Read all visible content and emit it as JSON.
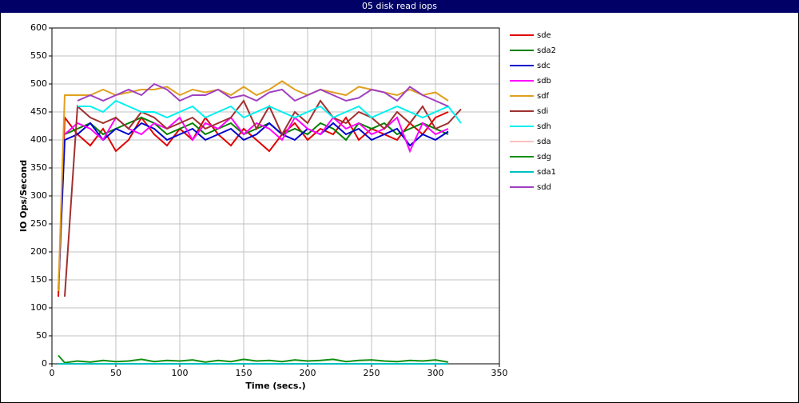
{
  "chart_data": {
    "type": "line",
    "title": "05 disk read iops",
    "xlabel": "Time (secs.)",
    "ylabel": "IO Ops/Second",
    "xlim": [
      0,
      350
    ],
    "xticks": [
      0,
      50,
      100,
      150,
      200,
      250,
      300,
      350
    ],
    "ylim": [
      0,
      600
    ],
    "yticks": [
      0,
      50,
      100,
      150,
      200,
      250,
      300,
      350,
      400,
      450,
      500,
      550,
      600
    ],
    "grid": true,
    "legend": "right",
    "x": [
      5,
      10,
      20,
      30,
      40,
      50,
      60,
      70,
      80,
      90,
      100,
      110,
      120,
      130,
      140,
      150,
      160,
      170,
      180,
      190,
      200,
      210,
      220,
      230,
      240,
      250,
      260,
      270,
      280,
      290,
      300,
      310,
      320
    ],
    "series": [
      {
        "name": "sde",
        "color": "#e00000",
        "values": [
          120,
          440,
          410,
          390,
          420,
          380,
          400,
          440,
          410,
          390,
          420,
          400,
          440,
          410,
          390,
          420,
          400,
          380,
          410,
          430,
          400,
          420,
          410,
          440,
          400,
          420,
          410,
          400,
          430,
          410,
          440,
          450,
          null
        ]
      },
      {
        "name": "sda2",
        "color": "#008000",
        "values": [
          null,
          410,
          420,
          430,
          410,
          420,
          430,
          440,
          430,
          410,
          420,
          430,
          410,
          420,
          430,
          410,
          420,
          430,
          410,
          420,
          410,
          430,
          420,
          400,
          430,
          420,
          430,
          410,
          420,
          430,
          420,
          410,
          null
        ]
      },
      {
        "name": "sdc",
        "color": "#0000cc",
        "values": [
          130,
          400,
          410,
          430,
          400,
          420,
          410,
          430,
          420,
          400,
          410,
          420,
          400,
          410,
          420,
          400,
          410,
          430,
          410,
          400,
          420,
          410,
          430,
          410,
          420,
          400,
          410,
          420,
          390,
          410,
          400,
          415,
          null
        ]
      },
      {
        "name": "sdb",
        "color": "#ff00ff",
        "values": [
          null,
          410,
          430,
          420,
          400,
          440,
          420,
          410,
          430,
          420,
          440,
          400,
          430,
          420,
          440,
          410,
          430,
          420,
          400,
          440,
          420,
          410,
          440,
          420,
          430,
          410,
          420,
          440,
          380,
          430,
          410,
          420,
          null
        ]
      },
      {
        "name": "sdf",
        "color": "#e0a020",
        "values": [
          130,
          480,
          480,
          480,
          490,
          480,
          485,
          490,
          490,
          495,
          480,
          490,
          485,
          490,
          480,
          495,
          480,
          490,
          505,
          490,
          480,
          490,
          485,
          480,
          495,
          490,
          485,
          480,
          490,
          480,
          485,
          470,
          null
        ]
      },
      {
        "name": "sdi",
        "color": "#a03030",
        "values": [
          null,
          120,
          460,
          440,
          430,
          440,
          420,
          450,
          440,
          420,
          430,
          440,
          420,
          430,
          440,
          470,
          420,
          460,
          410,
          450,
          430,
          470,
          440,
          430,
          450,
          440,
          420,
          450,
          430,
          460,
          420,
          430,
          455
        ]
      },
      {
        "name": "sdh",
        "color": "#00f0f0",
        "values": [
          null,
          null,
          460,
          460,
          450,
          470,
          460,
          450,
          450,
          440,
          450,
          460,
          440,
          450,
          460,
          440,
          450,
          460,
          450,
          440,
          450,
          460,
          440,
          450,
          460,
          440,
          450,
          460,
          450,
          440,
          450,
          460,
          430
        ]
      },
      {
        "name": "sda",
        "color": "#ffc0c0",
        "values": [
          0,
          0,
          0,
          0,
          0,
          0,
          0,
          0,
          0,
          0,
          0,
          0,
          0,
          0,
          0,
          0,
          0,
          0,
          0,
          0,
          0,
          0,
          0,
          0,
          0,
          0,
          0,
          0,
          0,
          0,
          0,
          0,
          null
        ]
      },
      {
        "name": "sdg",
        "color": "#109010",
        "values": [
          15,
          2,
          5,
          3,
          6,
          4,
          5,
          8,
          4,
          6,
          5,
          7,
          3,
          6,
          4,
          8,
          5,
          6,
          4,
          7,
          5,
          6,
          8,
          4,
          6,
          7,
          5,
          4,
          6,
          5,
          7,
          3,
          null
        ]
      },
      {
        "name": "sda1",
        "color": "#00c0c0",
        "values": [
          0,
          0,
          0,
          0,
          0,
          0,
          0,
          0,
          0,
          0,
          0,
          0,
          0,
          0,
          0,
          0,
          0,
          0,
          0,
          0,
          0,
          0,
          0,
          0,
          0,
          0,
          0,
          0,
          0,
          0,
          0,
          0,
          null
        ]
      },
      {
        "name": "sdd",
        "color": "#a040c0",
        "values": [
          null,
          null,
          470,
          480,
          470,
          480,
          490,
          480,
          500,
          490,
          470,
          480,
          480,
          490,
          475,
          480,
          470,
          485,
          490,
          470,
          480,
          490,
          480,
          470,
          475,
          490,
          485,
          470,
          495,
          480,
          470,
          460,
          null
        ]
      }
    ]
  }
}
